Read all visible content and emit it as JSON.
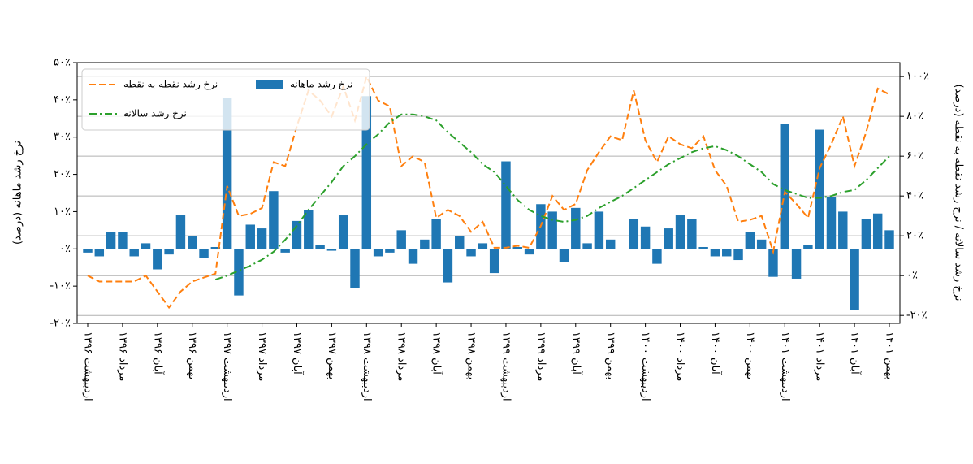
{
  "chart_data": {
    "type": "bar-line",
    "ylabel": "نرخ رشد ماهانه (درصد)",
    "y2label": "نرخ رشد سالانه / نرخ رشد نقطه به نقطه (درصد)",
    "categories": [
      "اردیبهشت ۱۳۹۶",
      null,
      null,
      "مرداد ۱۳۹۶",
      null,
      null,
      "آبان ۱۳۹۶",
      null,
      null,
      "بهمن ۱۳۹۶",
      null,
      null,
      "اردیبهشت ۱۳۹۷",
      null,
      null,
      "مرداد ۱۳۹۷",
      null,
      null,
      "آبان ۱۳۹۷",
      null,
      null,
      "بهمن ۱۳۹۷",
      null,
      null,
      "اردیبهشت ۱۳۹۸",
      null,
      null,
      "مرداد ۱۳۹۸",
      null,
      null,
      "آبان ۱۳۹۸",
      null,
      null,
      "بهمن ۱۳۹۸",
      null,
      null,
      "اردیبهشت ۱۳۹۹",
      null,
      null,
      "مرداد ۱۳۹۹",
      null,
      null,
      "آبان ۱۳۹۹",
      null,
      null,
      "بهمن ۱۳۹۹",
      null,
      null,
      "اردیبهشت ۱۴۰۰",
      null,
      null,
      "مرداد ۱۴۰۰",
      null,
      null,
      "آبان ۱۴۰۰",
      null,
      null,
      "بهمن ۱۴۰۰",
      null,
      null,
      "اردیبهشت ۱۴۰۱",
      null,
      null,
      "مرداد ۱۴۰۱",
      null,
      null,
      "آبان ۱۴۰۱",
      null,
      null,
      "بهمن ۱۴۰۱"
    ],
    "series": [
      {
        "name": "نرخ رشد نقطه به نقطه",
        "color": "#ff7f0e",
        "kind": "line",
        "dash": "dashed",
        "axis": "y2",
        "values": [
          0,
          -3,
          -3,
          -3,
          -3,
          0,
          -8,
          -16,
          -8,
          -3,
          -1,
          1,
          45,
          30,
          31,
          34,
          57,
          55,
          75,
          93,
          88,
          80,
          95,
          78,
          100,
          88,
          85,
          55,
          60,
          57,
          29,
          33,
          30,
          22,
          27,
          14,
          14,
          15,
          14,
          25,
          40,
          33,
          36,
          53,
          62,
          70,
          68,
          93,
          68,
          57,
          70,
          66,
          64,
          70,
          53,
          45,
          27,
          28,
          30,
          12,
          42,
          36,
          29,
          54,
          66,
          80,
          55,
          72,
          94,
          91
        ]
      },
      {
        "name": "نرخ رشد سالانه",
        "color": "#2ca02c",
        "kind": "line",
        "dash": "dashdot",
        "axis": "y2",
        "values": [
          null,
          null,
          null,
          null,
          null,
          null,
          null,
          null,
          null,
          null,
          null,
          -2,
          0,
          2.5,
          5,
          8,
          12,
          18,
          25,
          33,
          40,
          47,
          55,
          60,
          66,
          71,
          77,
          81,
          81,
          80,
          78,
          72,
          67,
          62,
          56,
          52,
          45,
          38,
          33,
          30,
          28,
          27,
          28,
          30,
          34,
          37,
          40,
          44,
          48,
          52,
          56,
          59,
          62,
          64,
          65,
          63,
          60,
          56,
          52,
          46,
          43,
          41,
          39,
          39,
          40,
          42,
          43,
          48,
          54,
          60
        ]
      },
      {
        "name": "نرخ رشد ماهانه",
        "color": "#1f77b4",
        "kind": "bar",
        "axis": "y",
        "values": [
          -1,
          -2,
          4.5,
          4.5,
          -2,
          1.5,
          -5.5,
          -1.5,
          9,
          3.5,
          -2.5,
          0.5,
          40.5,
          -12.5,
          6.5,
          5.5,
          15.5,
          -1,
          7.5,
          10.5,
          1,
          -0.5,
          9,
          -10.5,
          41,
          -2,
          -1,
          5,
          -4,
          2.5,
          8,
          -9,
          3.5,
          -2,
          1.5,
          -6.5,
          23.5,
          0.5,
          -1.5,
          12,
          10,
          -3.5,
          11,
          1.5,
          10,
          2.5,
          0,
          8,
          6,
          -4,
          5.5,
          9,
          8,
          0.5,
          -2,
          -2,
          -3,
          4.5,
          2.5,
          -7.5,
          33.5,
          -8,
          1,
          32,
          14,
          10,
          -16.5,
          8,
          9.5,
          5
        ]
      }
    ],
    "ylim": [
      -20,
      50
    ],
    "yticks": [
      {
        "value": -20,
        "label": "-۲۰٪"
      },
      {
        "value": -10,
        "label": "-۱۰٪"
      },
      {
        "value": 0,
        "label": "۰٪"
      },
      {
        "value": 10,
        "label": "۱۰٪"
      },
      {
        "value": 20,
        "label": "۲۰٪"
      },
      {
        "value": 30,
        "label": "۳۰٪"
      },
      {
        "value": 40,
        "label": "۴۰٪"
      },
      {
        "value": 50,
        "label": "۵۰٪"
      }
    ],
    "y2lim": [
      -24,
      107
    ],
    "y2ticks": [
      {
        "value": -20,
        "label": "-۲۰٪"
      },
      {
        "value": 0,
        "label": "۰٪"
      },
      {
        "value": 20,
        "label": "۲۰٪"
      },
      {
        "value": 40,
        "label": "۴۰٪"
      },
      {
        "value": 60,
        "label": "۶۰٪"
      },
      {
        "value": 80,
        "label": "۸۰٪"
      },
      {
        "value": 100,
        "label": "۱۰۰٪"
      }
    ],
    "grid": "y2",
    "legend": "upper left"
  }
}
